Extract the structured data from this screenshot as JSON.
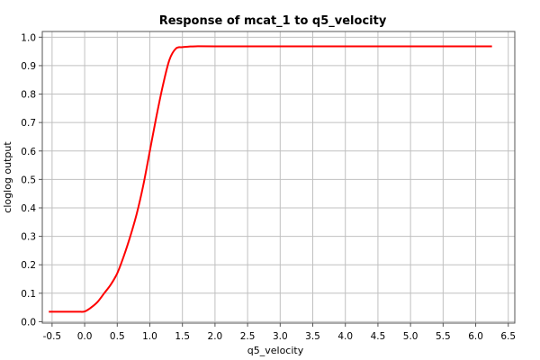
{
  "chart_data": {
    "type": "line",
    "title": "Response of mcat_1 to q5_velocity",
    "xlabel": "q5_velocity",
    "ylabel": "cloglog output",
    "xlim": [
      -0.65,
      6.6
    ],
    "ylim": [
      -0.005,
      1.02
    ],
    "xticks": [
      -0.5,
      0.0,
      0.5,
      1.0,
      1.5,
      2.0,
      2.5,
      3.0,
      3.5,
      4.0,
      4.5,
      5.0,
      5.5,
      6.0,
      6.5
    ],
    "xtick_labels": [
      "-0.5",
      "0.0",
      "0.5",
      "1.0",
      "1.5",
      "2.0",
      "2.5",
      "3.0",
      "3.5",
      "4.0",
      "4.5",
      "5.0",
      "5.5",
      "6.0",
      "6.5"
    ],
    "yticks": [
      0.0,
      0.1,
      0.2,
      0.3,
      0.4,
      0.5,
      0.6,
      0.7,
      0.8,
      0.9,
      1.0
    ],
    "ytick_labels": [
      "0.0",
      "0.1",
      "0.2",
      "0.3",
      "0.4",
      "0.5",
      "0.6",
      "0.7",
      "0.8",
      "0.9",
      "1.0"
    ],
    "grid": true,
    "series": [
      {
        "color": "#ff0000",
        "x": [
          -0.55,
          -0.5,
          -0.3,
          -0.1,
          0.0,
          0.1,
          0.2,
          0.3,
          0.4,
          0.5,
          0.6,
          0.7,
          0.8,
          0.9,
          1.0,
          1.1,
          1.2,
          1.3,
          1.4,
          1.5,
          1.6,
          1.7,
          2.0,
          3.0,
          4.0,
          5.0,
          6.0,
          6.25
        ],
        "y": [
          0.035,
          0.035,
          0.035,
          0.035,
          0.036,
          0.05,
          0.07,
          0.1,
          0.13,
          0.17,
          0.23,
          0.3,
          0.38,
          0.48,
          0.6,
          0.72,
          0.83,
          0.92,
          0.96,
          0.965,
          0.967,
          0.968,
          0.968,
          0.968,
          0.968,
          0.968,
          0.968,
          0.968
        ]
      }
    ]
  }
}
